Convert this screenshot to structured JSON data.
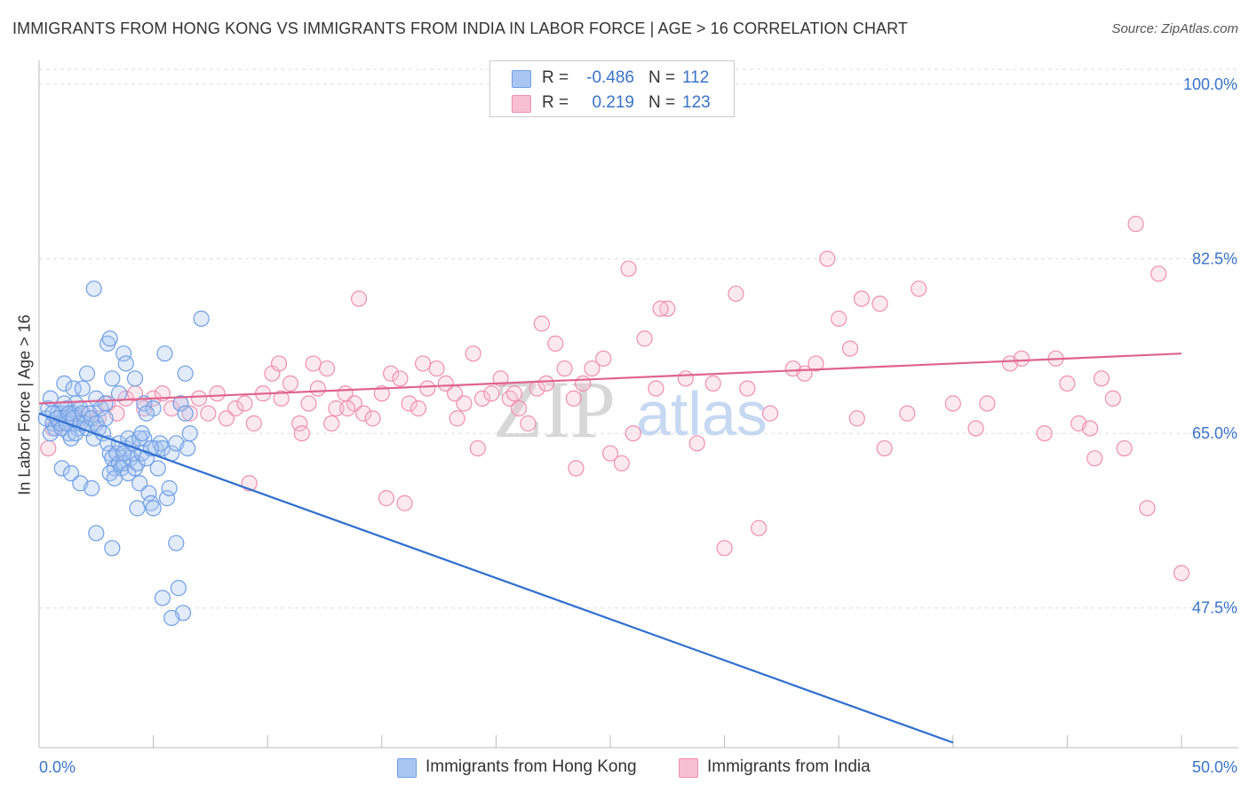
{
  "header": {
    "title": "IMMIGRANTS FROM HONG KONG VS IMMIGRANTS FROM INDIA IN LABOR FORCE | AGE > 16 CORRELATION CHART",
    "source": "Source: ZipAtlas.com"
  },
  "stats": {
    "rows": [
      {
        "r_label": "R =",
        "r_value": "-0.486",
        "n_label": "N =",
        "n_value": "112",
        "color": "#a9c6f2",
        "border": "#6f9fe6"
      },
      {
        "r_label": "R =",
        "r_value": "0.219",
        "n_label": "N =",
        "n_value": "123",
        "color": "#f7bfd2",
        "border": "#ee8fb0"
      }
    ]
  },
  "legend": {
    "items": [
      {
        "label": "Immigrants from Hong Kong",
        "color": "#a9c6f2",
        "border": "#6f9fe6"
      },
      {
        "label": "Immigrants from India",
        "color": "#f7bfd2",
        "border": "#ee8fb0"
      }
    ]
  },
  "watermark": {
    "zip": "ZIP",
    "atlas": "atlas"
  },
  "chart_data": {
    "type": "scatter",
    "title": "IMMIGRANTS FROM HONG KONG VS IMMIGRANTS FROM INDIA IN LABOR FORCE | AGE > 16 CORRELATION CHART",
    "xlabel": "",
    "ylabel": "In Labor Force | Age > 16",
    "xlim": [
      0,
      50
    ],
    "ylim": [
      33.5,
      101.5
    ],
    "x_tick_labels": [
      "0.0%",
      "50.0%"
    ],
    "y_ticks": [
      47.5,
      65.0,
      82.5,
      100.0
    ],
    "y_tick_labels": [
      "47.5%",
      "65.0%",
      "82.5%",
      "100.0%"
    ],
    "grid": true,
    "legend_position": "bottom",
    "series": [
      {
        "name": "Immigrants from Hong Kong",
        "color": "#6f9fe6",
        "line_color": "#2f6fd0",
        "trend": {
          "x": [
            0,
            40.0
          ],
          "y": [
            67.0,
            34.0
          ]
        },
        "points": [
          [
            0.3,
            66.5
          ],
          [
            0.4,
            67.5
          ],
          [
            0.5,
            68.5
          ],
          [
            0.6,
            66.0
          ],
          [
            0.7,
            65.5
          ],
          [
            0.8,
            67.0
          ],
          [
            0.9,
            66.0
          ],
          [
            1.0,
            67.0
          ],
          [
            1.1,
            66.5
          ],
          [
            1.2,
            67.5
          ],
          [
            1.3,
            65.0
          ],
          [
            1.4,
            66.0
          ],
          [
            1.5,
            67.0
          ],
          [
            1.6,
            68.0
          ],
          [
            1.7,
            65.5
          ],
          [
            1.8,
            67.5
          ],
          [
            0.5,
            65.0
          ],
          [
            0.6,
            67.0
          ],
          [
            0.8,
            66.5
          ],
          [
            1.0,
            65.5
          ],
          [
            1.1,
            68.0
          ],
          [
            1.2,
            66.0
          ],
          [
            1.3,
            67.0
          ],
          [
            1.4,
            64.5
          ],
          [
            1.5,
            66.5
          ],
          [
            1.6,
            65.0
          ],
          [
            1.8,
            66.0
          ],
          [
            1.9,
            67.0
          ],
          [
            2.0,
            66.0
          ],
          [
            2.1,
            65.5
          ],
          [
            2.2,
            67.0
          ],
          [
            2.3,
            66.5
          ],
          [
            2.4,
            64.5
          ],
          [
            2.5,
            66.0
          ],
          [
            2.6,
            65.5
          ],
          [
            2.7,
            67.5
          ],
          [
            2.8,
            65.0
          ],
          [
            2.9,
            66.5
          ],
          [
            3.0,
            64.0
          ],
          [
            3.1,
            63.0
          ],
          [
            3.2,
            62.5
          ],
          [
            3.3,
            61.5
          ],
          [
            3.4,
            63.0
          ],
          [
            3.5,
            62.0
          ],
          [
            3.6,
            61.5
          ],
          [
            3.7,
            62.0
          ],
          [
            3.8,
            63.5
          ],
          [
            3.9,
            61.0
          ],
          [
            4.0,
            62.5
          ],
          [
            4.1,
            63.0
          ],
          [
            4.2,
            61.5
          ],
          [
            4.3,
            62.0
          ],
          [
            4.4,
            60.0
          ],
          [
            4.5,
            63.0
          ],
          [
            4.6,
            64.5
          ],
          [
            4.7,
            62.5
          ],
          [
            4.8,
            59.0
          ],
          [
            4.9,
            58.0
          ],
          [
            5.0,
            57.5
          ],
          [
            5.1,
            63.5
          ],
          [
            5.2,
            61.5
          ],
          [
            5.3,
            64.0
          ],
          [
            5.4,
            63.5
          ],
          [
            5.6,
            58.5
          ],
          [
            5.7,
            59.5
          ],
          [
            5.8,
            63.0
          ],
          [
            6.0,
            64.0
          ],
          [
            6.2,
            68.0
          ],
          [
            6.4,
            67.0
          ],
          [
            6.5,
            63.5
          ],
          [
            6.6,
            65.0
          ],
          [
            1.1,
            70.0
          ],
          [
            1.5,
            69.5
          ],
          [
            1.9,
            69.5
          ],
          [
            2.1,
            71.0
          ],
          [
            2.5,
            68.5
          ],
          [
            2.9,
            68.0
          ],
          [
            3.0,
            74.0
          ],
          [
            3.2,
            70.5
          ],
          [
            3.5,
            69.0
          ],
          [
            3.7,
            73.0
          ],
          [
            4.2,
            70.5
          ],
          [
            4.6,
            68.0
          ],
          [
            5.0,
            67.5
          ],
          [
            1.0,
            61.5
          ],
          [
            1.4,
            61.0
          ],
          [
            1.8,
            60.0
          ],
          [
            2.3,
            59.5
          ],
          [
            2.5,
            55.0
          ],
          [
            3.1,
            61.0
          ],
          [
            3.3,
            60.5
          ],
          [
            3.5,
            64.0
          ],
          [
            3.7,
            63.0
          ],
          [
            3.9,
            64.5
          ],
          [
            4.1,
            64.0
          ],
          [
            4.3,
            57.5
          ],
          [
            4.4,
            64.5
          ],
          [
            4.9,
            63.5
          ],
          [
            3.1,
            74.5
          ],
          [
            2.4,
            79.5
          ],
          [
            3.8,
            72.0
          ],
          [
            5.5,
            73.0
          ],
          [
            6.4,
            71.0
          ],
          [
            7.1,
            76.5
          ],
          [
            6.0,
            54.0
          ],
          [
            4.5,
            65.0
          ],
          [
            4.7,
            67.0
          ],
          [
            3.2,
            53.5
          ],
          [
            6.1,
            49.5
          ],
          [
            6.3,
            47.0
          ],
          [
            5.4,
            48.5
          ],
          [
            5.8,
            46.5
          ]
        ]
      },
      {
        "name": "Immigrants from India",
        "color": "#ee8fb0",
        "line_color": "#e0638f",
        "trend": {
          "x": [
            0,
            50
          ],
          "y": [
            68.0,
            73.0
          ]
        },
        "points": [
          [
            0.4,
            63.5
          ],
          [
            0.6,
            65.5
          ],
          [
            1.0,
            66.0
          ],
          [
            1.4,
            67.0
          ],
          [
            1.8,
            66.5
          ],
          [
            2.2,
            67.0
          ],
          [
            2.6,
            66.5
          ],
          [
            3.0,
            68.0
          ],
          [
            3.4,
            67.0
          ],
          [
            3.8,
            68.5
          ],
          [
            4.2,
            69.0
          ],
          [
            4.6,
            67.5
          ],
          [
            5.0,
            68.5
          ],
          [
            5.4,
            69.0
          ],
          [
            5.8,
            67.5
          ],
          [
            6.2,
            68.0
          ],
          [
            6.6,
            67.0
          ],
          [
            7.0,
            68.5
          ],
          [
            7.4,
            67.0
          ],
          [
            7.8,
            69.0
          ],
          [
            8.2,
            66.5
          ],
          [
            8.6,
            67.5
          ],
          [
            9.0,
            68.0
          ],
          [
            9.4,
            66.0
          ],
          [
            9.8,
            69.0
          ],
          [
            10.2,
            71.0
          ],
          [
            10.6,
            68.5
          ],
          [
            11.0,
            70.0
          ],
          [
            11.4,
            66.0
          ],
          [
            11.8,
            68.0
          ],
          [
            12.2,
            69.5
          ],
          [
            12.6,
            71.5
          ],
          [
            13.0,
            67.5
          ],
          [
            13.4,
            69.0
          ],
          [
            13.8,
            68.0
          ],
          [
            14.2,
            67.0
          ],
          [
            14.6,
            66.5
          ],
          [
            15.0,
            69.0
          ],
          [
            15.4,
            71.0
          ],
          [
            15.8,
            70.5
          ],
          [
            16.2,
            68.0
          ],
          [
            16.6,
            67.5
          ],
          [
            17.0,
            69.5
          ],
          [
            17.4,
            71.5
          ],
          [
            17.8,
            70.0
          ],
          [
            18.2,
            69.0
          ],
          [
            18.6,
            68.0
          ],
          [
            19.0,
            73.0
          ],
          [
            19.4,
            68.5
          ],
          [
            19.8,
            69.0
          ],
          [
            20.2,
            70.5
          ],
          [
            20.6,
            68.5
          ],
          [
            21.0,
            67.5
          ],
          [
            21.4,
            66.0
          ],
          [
            21.8,
            69.5
          ],
          [
            22.2,
            70.0
          ],
          [
            22.6,
            74.0
          ],
          [
            23.0,
            71.5
          ],
          [
            23.4,
            68.5
          ],
          [
            23.8,
            70.0
          ],
          [
            24.2,
            71.5
          ],
          [
            25.0,
            63.0
          ],
          [
            25.5,
            62.0
          ],
          [
            26.0,
            65.0
          ],
          [
            26.5,
            74.5
          ],
          [
            27.0,
            69.5
          ],
          [
            27.5,
            77.5
          ],
          [
            28.3,
            70.5
          ],
          [
            28.8,
            64.0
          ],
          [
            29.5,
            70.0
          ],
          [
            30.0,
            53.5
          ],
          [
            31.0,
            69.5
          ],
          [
            32.0,
            67.0
          ],
          [
            33.0,
            71.5
          ],
          [
            34.0,
            72.0
          ],
          [
            34.5,
            82.5
          ],
          [
            35.0,
            76.5
          ],
          [
            35.5,
            73.5
          ],
          [
            36.0,
            78.5
          ],
          [
            37.0,
            63.5
          ],
          [
            38.0,
            67.0
          ],
          [
            38.5,
            79.5
          ],
          [
            40.0,
            68.0
          ],
          [
            41.5,
            68.0
          ],
          [
            42.5,
            72.0
          ],
          [
            43.0,
            72.5
          ],
          [
            44.0,
            65.0
          ],
          [
            45.5,
            66.0
          ],
          [
            46.0,
            65.5
          ],
          [
            46.5,
            70.5
          ],
          [
            47.0,
            68.5
          ],
          [
            48.0,
            86.0
          ],
          [
            49.0,
            81.0
          ],
          [
            50.0,
            51.0
          ],
          [
            10.5,
            72.0
          ],
          [
            11.5,
            65.0
          ],
          [
            12.0,
            72.0
          ],
          [
            13.5,
            67.5
          ],
          [
            15.2,
            58.5
          ],
          [
            16.8,
            72.0
          ],
          [
            18.3,
            66.5
          ],
          [
            19.2,
            63.5
          ],
          [
            20.8,
            69.0
          ],
          [
            22.0,
            76.0
          ],
          [
            23.5,
            61.5
          ],
          [
            24.7,
            72.5
          ],
          [
            25.8,
            81.5
          ],
          [
            27.2,
            77.5
          ],
          [
            30.5,
            79.0
          ],
          [
            31.5,
            55.5
          ],
          [
            33.5,
            71.0
          ],
          [
            35.8,
            66.5
          ],
          [
            36.8,
            78.0
          ],
          [
            41.0,
            65.5
          ],
          [
            44.5,
            72.5
          ],
          [
            45.0,
            70.0
          ],
          [
            46.2,
            62.5
          ],
          [
            47.5,
            63.5
          ],
          [
            48.5,
            57.5
          ],
          [
            9.2,
            60.0
          ],
          [
            12.8,
            66.0
          ],
          [
            14.0,
            78.5
          ],
          [
            16.0,
            58.0
          ]
        ]
      }
    ]
  }
}
